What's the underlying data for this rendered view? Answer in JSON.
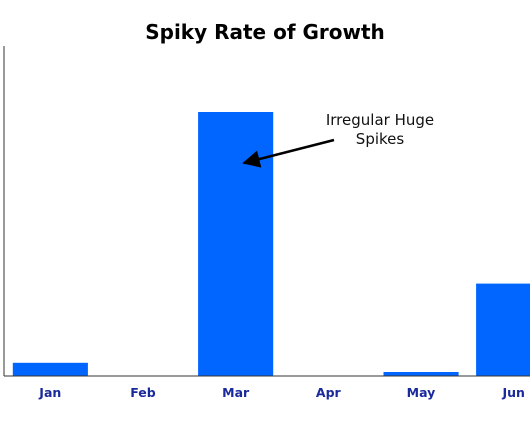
{
  "chart_data": {
    "type": "bar",
    "title": "Spiky Rate of Growth",
    "xlabel": "",
    "ylabel": "",
    "categories": [
      "Jan",
      "Feb",
      "Mar",
      "Apr",
      "May",
      "Jun"
    ],
    "values": [
      5,
      0,
      100,
      0,
      1.5,
      35
    ],
    "ylim": [
      0,
      125
    ],
    "grid": false,
    "legend": "none",
    "annotation": {
      "lines": [
        "Irregular Huge",
        "Spikes"
      ],
      "points_to": "Mar"
    }
  },
  "colors": {
    "bar": "#0066ff",
    "tick_label": "#1a2a9c",
    "axis": "#333333",
    "arrow": "#000000"
  }
}
